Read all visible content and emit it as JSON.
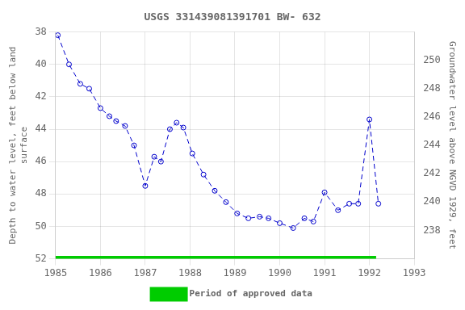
{
  "chart_data": {
    "type": "line",
    "title": "USGS 331439081391701 BW- 632",
    "ylabel": "Depth to water level, feet below land\nsurface",
    "y2label": "Groundwater level above NGVD 1929, feet",
    "xlim": [
      1985,
      1993
    ],
    "xticks": [
      1985,
      1986,
      1987,
      1988,
      1989,
      1990,
      1991,
      1992,
      1993
    ],
    "ylim": [
      52,
      38
    ],
    "yticks": [
      38,
      40,
      42,
      44,
      46,
      48,
      50,
      52
    ],
    "y2lim": [
      236,
      252
    ],
    "y2ticks": [
      238,
      240,
      242,
      244,
      246,
      248,
      250
    ],
    "grid": true,
    "legend": "bottom",
    "series": [
      {
        "color": "#0000CC",
        "marker": "circle",
        "line_style": "dashed",
        "x": [
          1985.05,
          1985.3,
          1985.55,
          1985.75,
          1986.0,
          1986.2,
          1986.35,
          1986.55,
          1986.75,
          1987.0,
          1987.2,
          1987.35,
          1987.55,
          1987.7,
          1987.85,
          1988.05,
          1988.3,
          1988.55,
          1988.8,
          1989.05,
          1989.3,
          1989.55,
          1989.75,
          1990.0,
          1990.3,
          1990.55,
          1990.75,
          1991.0,
          1991.3,
          1991.55,
          1991.75,
          1992.0,
          1992.2
        ],
        "values": [
          38.2,
          40.0,
          41.2,
          41.5,
          42.7,
          43.2,
          43.5,
          43.8,
          45.0,
          47.5,
          45.7,
          46.0,
          44.0,
          43.6,
          43.9,
          45.5,
          46.8,
          47.8,
          48.5,
          49.2,
          49.5,
          49.4,
          49.5,
          49.8,
          50.1,
          49.5,
          49.7,
          47.9,
          49.0,
          48.6,
          48.6,
          43.4,
          48.6
        ]
      },
      {
        "name": "Period of approved data",
        "color": "#00cc00",
        "marker": "none",
        "line_style": "solid",
        "x": [
          1985.0,
          1992.15
        ],
        "values": [
          52,
          52
        ]
      }
    ]
  }
}
